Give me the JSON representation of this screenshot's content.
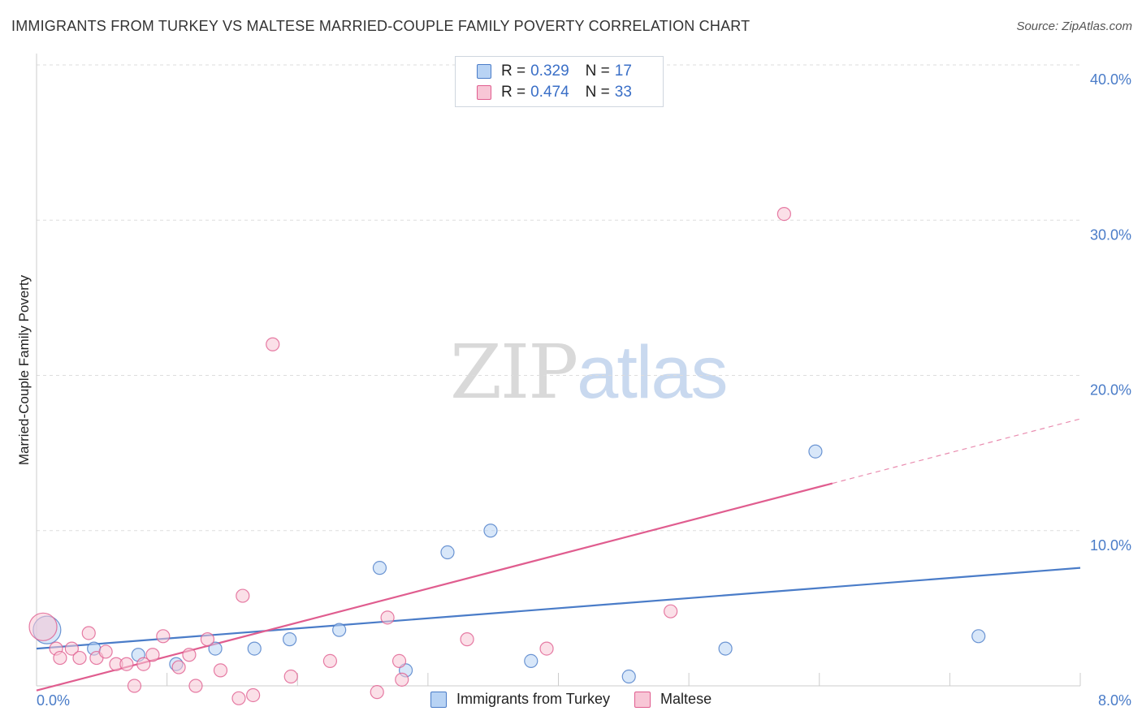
{
  "title": "IMMIGRANTS FROM TURKEY VS MALTESE MARRIED-COUPLE FAMILY POVERTY CORRELATION CHART",
  "source": "Source: ZipAtlas.com",
  "watermark": {
    "part1": "ZIP",
    "part2": "atlas"
  },
  "colors": {
    "blue": "#4a7cc8",
    "pink": "#e05d8f",
    "blue_fill": "#b8d3f4",
    "pink_fill": "#f8c6d6"
  },
  "legend": {
    "r_label": "R =",
    "n_label": "N =",
    "rows": [
      {
        "r": "0.329",
        "n": "17"
      },
      {
        "r": "0.474",
        "n": "33"
      }
    ]
  },
  "chart_data": {
    "type": "scatter",
    "title": "IMMIGRANTS FROM TURKEY VS MALTESE MARRIED-COUPLE FAMILY POVERTY CORRELATION CHART",
    "xlabel": "",
    "ylabel": "Married-Couple Family Poverty",
    "xlim": [
      0,
      8
    ],
    "ylim": [
      0,
      40
    ],
    "x_tick_labels": [
      {
        "value": 0,
        "label": "0.0%"
      },
      {
        "value": 8,
        "label": "8.0%"
      }
    ],
    "y_tick_labels": [
      {
        "value": 10,
        "label": "10.0%"
      },
      {
        "value": 20,
        "label": "20.0%"
      },
      {
        "value": 30,
        "label": "30.0%"
      },
      {
        "value": 40,
        "label": "40.0%"
      }
    ],
    "series": [
      {
        "name": "Immigrants from Turkey",
        "color": "#4a7cc8",
        "points": [
          {
            "x": 0.08,
            "y": 3.6,
            "big": true
          },
          {
            "x": 0.44,
            "y": 2.4
          },
          {
            "x": 0.78,
            "y": 2.0
          },
          {
            "x": 1.07,
            "y": 1.4
          },
          {
            "x": 1.37,
            "y": 2.4
          },
          {
            "x": 1.67,
            "y": 2.4
          },
          {
            "x": 1.94,
            "y": 3.0
          },
          {
            "x": 2.32,
            "y": 3.6
          },
          {
            "x": 2.63,
            "y": 7.6
          },
          {
            "x": 2.83,
            "y": 1.0
          },
          {
            "x": 3.15,
            "y": 8.6
          },
          {
            "x": 3.48,
            "y": 10.0
          },
          {
            "x": 3.79,
            "y": 1.6
          },
          {
            "x": 4.54,
            "y": 0.6
          },
          {
            "x": 5.28,
            "y": 2.4
          },
          {
            "x": 5.97,
            "y": 15.1
          },
          {
            "x": 7.22,
            "y": 3.2
          }
        ],
        "trend": {
          "x1": 0,
          "y1": 2.4,
          "x2": 8,
          "y2": 7.6
        }
      },
      {
        "name": "Maltese",
        "color": "#e05d8f",
        "points": [
          {
            "x": 0.05,
            "y": 3.8,
            "big": true
          },
          {
            "x": 0.15,
            "y": 2.4
          },
          {
            "x": 0.18,
            "y": 1.8
          },
          {
            "x": 0.27,
            "y": 2.4
          },
          {
            "x": 0.33,
            "y": 1.8
          },
          {
            "x": 0.4,
            "y": 3.4
          },
          {
            "x": 0.46,
            "y": 1.8
          },
          {
            "x": 0.53,
            "y": 2.2
          },
          {
            "x": 0.61,
            "y": 1.4
          },
          {
            "x": 0.69,
            "y": 1.4
          },
          {
            "x": 0.75,
            "y": 0.0
          },
          {
            "x": 0.82,
            "y": 1.4
          },
          {
            "x": 0.89,
            "y": 2.0
          },
          {
            "x": 0.97,
            "y": 3.2
          },
          {
            "x": 1.09,
            "y": 1.2
          },
          {
            "x": 1.17,
            "y": 2.0
          },
          {
            "x": 1.22,
            "y": 0.0
          },
          {
            "x": 1.31,
            "y": 3.0
          },
          {
            "x": 1.41,
            "y": 1.0
          },
          {
            "x": 1.55,
            "y": -0.8
          },
          {
            "x": 1.58,
            "y": 5.8
          },
          {
            "x": 1.66,
            "y": -0.6
          },
          {
            "x": 1.81,
            "y": 22.0
          },
          {
            "x": 1.95,
            "y": 0.6
          },
          {
            "x": 2.25,
            "y": 1.6
          },
          {
            "x": 2.61,
            "y": -0.4
          },
          {
            "x": 2.69,
            "y": 4.4
          },
          {
            "x": 2.78,
            "y": 1.6
          },
          {
            "x": 2.8,
            "y": 0.4
          },
          {
            "x": 3.3,
            "y": 3.0
          },
          {
            "x": 3.91,
            "y": 2.4
          },
          {
            "x": 4.86,
            "y": 4.8
          },
          {
            "x": 5.73,
            "y": 30.4
          }
        ],
        "trend": {
          "x1": 0,
          "y1": -0.3,
          "x2": 8,
          "y2": 17.2,
          "solid_until_x": 6.1
        }
      }
    ]
  },
  "bottom_legend": [
    {
      "label": "Immigrants from Turkey"
    },
    {
      "label": "Maltese"
    }
  ]
}
